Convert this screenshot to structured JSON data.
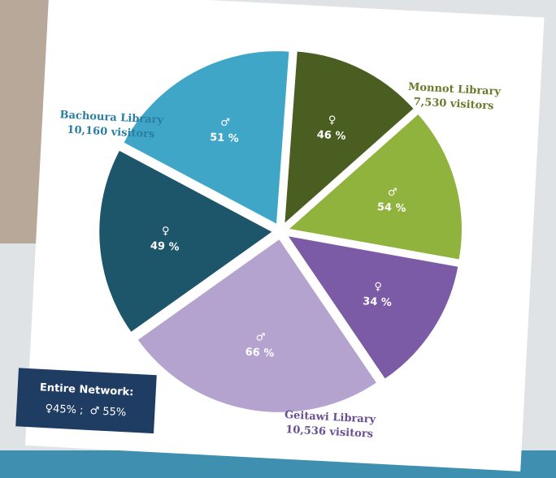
{
  "chart_data": {
    "type": "pie",
    "libraries": [
      {
        "name": "Monnot Library",
        "visitors": 7530,
        "visitors_label": "7,530 visitors",
        "color": "#6b7a2a",
        "slices": [
          {
            "symbol": "♀",
            "value": 46,
            "value_label": "46 %",
            "color": "#4b5e22"
          },
          {
            "symbol": "♂",
            "value": 54,
            "value_label": "54 %",
            "color": "#8fb33c"
          }
        ]
      },
      {
        "name": "Geitawi Library",
        "visitors": 10536,
        "visitors_label": "10,536 visitors",
        "color": "#6a4f93",
        "slices": [
          {
            "symbol": "♀",
            "value": 34,
            "value_label": "34 %",
            "color": "#7b5ba6"
          },
          {
            "symbol": "♂",
            "value": 66,
            "value_label": "66 %",
            "color": "#b4a3cf"
          }
        ]
      },
      {
        "name": "Bachoura Library",
        "visitors": 10160,
        "visitors_label": "10,160 visitors",
        "color": "#2a7fa0",
        "slices": [
          {
            "symbol": "♀",
            "value": 49,
            "value_label": "49 %",
            "color": "#1d566b"
          },
          {
            "symbol": "♂",
            "value": 51,
            "value_label": "51 %",
            "color": "#40a6c8"
          }
        ]
      }
    ],
    "network": {
      "title": "Entire Network:",
      "values": [
        45,
        55
      ],
      "value_labels": [
        "♀45% ;",
        "♂ 55%"
      ]
    }
  }
}
